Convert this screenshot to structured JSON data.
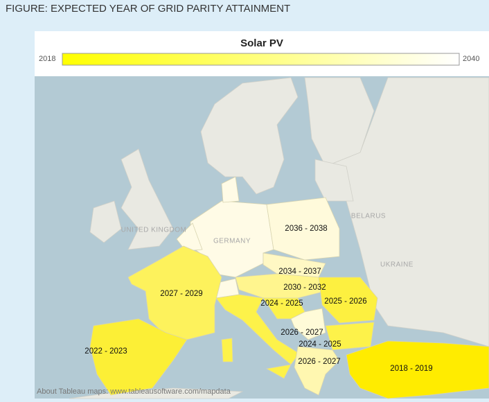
{
  "figure_title": "FIGURE: EXPECTED YEAR OF GRID PARITY ATTAINMENT",
  "legend": {
    "title": "Solar PV",
    "min": 2018,
    "max": 2040,
    "min_color": "#ffff00",
    "max_color": "#ffffff"
  },
  "regions": [
    {
      "label": "2036 - 2038",
      "color": "#fffadb"
    },
    {
      "label": "2034 - 2037",
      "color": "#fff8c4"
    },
    {
      "label": "2030 - 2032",
      "color": "#fff58e"
    },
    {
      "label": "2027 - 2029",
      "color": "#fdf25c"
    },
    {
      "label": "2024 - 2025",
      "color": "#fdf24a"
    },
    {
      "label": "2025 - 2026",
      "color": "#fdf040"
    },
    {
      "label": "2026 - 2027",
      "color": "#fffbd8"
    },
    {
      "label": "2024 - 2025",
      "color": "#fdf24a"
    },
    {
      "label": "2022 - 2023",
      "color": "#fcef36"
    },
    {
      "label": "2026 - 2027",
      "color": "#fff7b0"
    },
    {
      "label": "2018 - 2019",
      "color": "#ffec00"
    }
  ],
  "basemap_labels": [
    "UNITED KINGDOM",
    "GERMANY",
    "BELARUS",
    "UKRAINE"
  ],
  "attribution": "About Tableau maps: www.tableausoftware.com/mapdata"
}
